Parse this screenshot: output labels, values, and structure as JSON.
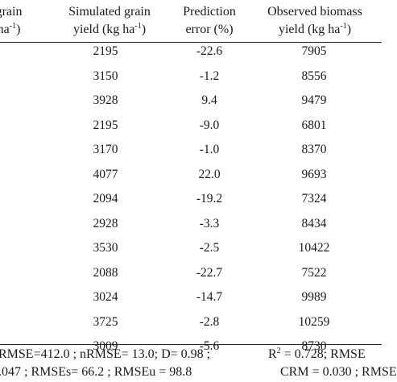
{
  "table": {
    "headers": [
      {
        "line1": "grain",
        "line2_pre": "ha",
        "line2_sup": "-1",
        "line2_post": ")"
      },
      {
        "line1": "Simulated grain",
        "line2_pre": "yield (kg ha",
        "line2_sup": "-1",
        "line2_post": ")"
      },
      {
        "line1": "Prediction",
        "line2_pre": "error (%)",
        "line2_sup": "",
        "line2_post": ""
      },
      {
        "line1": "Observed biomass",
        "line2_pre": "yield (kg ha",
        "line2_sup": "-1",
        "line2_post": ")"
      }
    ],
    "rows": [
      {
        "simulated": "2195",
        "error": "-22.6",
        "biomass": "7905"
      },
      {
        "simulated": "3150",
        "error": "-1.2",
        "biomass": "8556"
      },
      {
        "simulated": "3928",
        "error": "9.4",
        "biomass": "9479"
      },
      {
        "simulated": "2195",
        "error": "-9.0",
        "biomass": "6801"
      },
      {
        "simulated": "3170",
        "error": "-1.0",
        "biomass": "8370"
      },
      {
        "simulated": "4077",
        "error": "22.0",
        "biomass": "9693"
      },
      {
        "simulated": "2094",
        "error": "-19.2",
        "biomass": "7324"
      },
      {
        "simulated": "2928",
        "error": "-3.3",
        "biomass": "8434"
      },
      {
        "simulated": "3530",
        "error": "-2.5",
        "biomass": "10422"
      },
      {
        "simulated": "2088",
        "error": "-22.7",
        "biomass": "7522"
      },
      {
        "simulated": "3024",
        "error": "-14.7",
        "biomass": "9989"
      },
      {
        "simulated": "3725",
        "error": "-2.8",
        "biomass": "10259"
      },
      {
        "simulated": "3009",
        "error": "-5.6",
        "biomass": "8730"
      }
    ]
  },
  "footer": {
    "left1": "RMSE=412.0 ; nRMSE= 13.0; D= 0.98 ;",
    "left2": ".047 ; RMSEs= 66.2 ; RMSEu = 98.8",
    "right1_pre": "R",
    "right1_sup": "2",
    "right1_post": " = 0.728; RMSE",
    "right2": "CRM = 0.030 ; RMSE"
  }
}
